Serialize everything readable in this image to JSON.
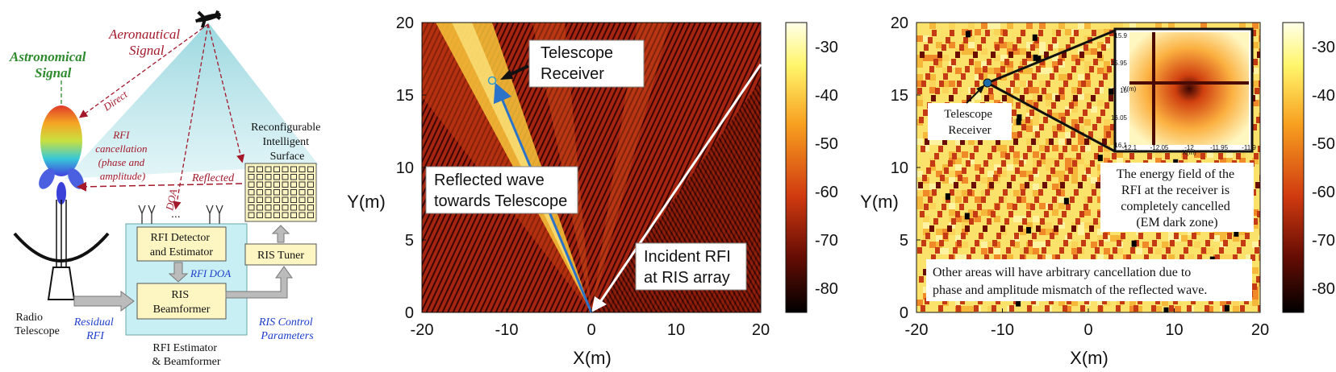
{
  "diagram": {
    "astro_signal": [
      "Astronomical",
      "Signal"
    ],
    "aero_signal": [
      "Aeronautical",
      "Signal"
    ],
    "direct": "Direct",
    "reflected": "Reflected",
    "doa": "DOA",
    "ellipsis": "...",
    "rfi_cancel": [
      "RFI",
      "cancellation",
      "(phase and",
      "amplitude)"
    ],
    "ris_label": [
      "Reconfigurable",
      "Intelligent",
      "Surface"
    ],
    "rfi_detector": [
      "RFI Detector",
      "and Estimator"
    ],
    "rfi_doa": "RFI DOA",
    "beamformer": [
      "RIS",
      "Beamformer"
    ],
    "ris_tuner": "RIS Tuner",
    "radio_telescope": [
      "Radio",
      "Telescope"
    ],
    "residual_rfi": [
      "Residual",
      "RFI"
    ],
    "ris_control": [
      "RIS Control",
      "Parameters"
    ],
    "estimator_block": [
      "RFI Estimator",
      "& Beamformer"
    ],
    "colors": {
      "red": "#a3182a",
      "green": "#2e8b2e",
      "blue": "#1f3fcc",
      "box": "#fdf6c3",
      "panel": "#c8f0f4"
    }
  },
  "plot_middle": {
    "xlabel": "X(m)",
    "ylabel": "Y(m)",
    "xticks": [
      "-20",
      "-10",
      "0",
      "10",
      "20"
    ],
    "yticks": [
      "0",
      "5",
      "10",
      "15",
      "20"
    ],
    "annotations": {
      "telescope": [
        "Telescope",
        "Receiver"
      ],
      "reflected": [
        "Reflected wave",
        "towards Telescope"
      ],
      "incident": [
        "Incident RFI",
        "at RIS array"
      ]
    }
  },
  "colorbar_ticks": [
    "-30",
    "-40",
    "-50",
    "-60",
    "-70",
    "-80"
  ],
  "plot_right": {
    "xlabel": "X(m)",
    "ylabel": "Y(m)",
    "xticks": [
      "-20",
      "-10",
      "0",
      "10",
      "20"
    ],
    "yticks": [
      "0",
      "5",
      "10",
      "15",
      "20"
    ],
    "telescope": [
      "Telescope",
      "Receiver"
    ],
    "inset_xticks": [
      "-12.1",
      "-12.05",
      "-12",
      "-11.95",
      "-11.9"
    ],
    "inset_yticks": [
      "15.9",
      "15.95",
      "16",
      "16.05",
      "16.1"
    ],
    "inset_xlabel": "X(m)",
    "inset_ylabel": "Y(m)",
    "energy_note": [
      "The energy field of the",
      "RFI at the receiver is",
      "completely cancelled",
      "(EM dark zone)"
    ],
    "other_note": [
      "Other areas will have arbitrary cancellation due to",
      "phase and amplitude mismatch of the reflected wave."
    ]
  }
}
